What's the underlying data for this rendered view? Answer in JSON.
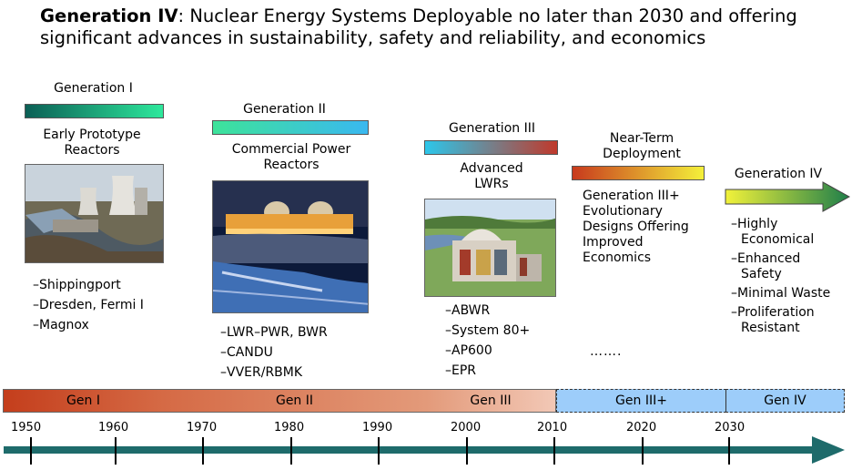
{
  "title": {
    "bold": "Generation IV",
    "rest": ": Nuclear Energy Systems Deployable no later than 2030 and offering significant advances in sustainability, safety and reliability, and economics"
  },
  "generations": {
    "gen1": {
      "label": "Generation I",
      "subtitle": "Early Prototype Reactors",
      "items": [
        "–Shippingport",
        "–Dresden, Fermi I",
        "–Magnox"
      ]
    },
    "gen2": {
      "label": "Generation II",
      "subtitle": "Commercial Power Reactors",
      "items": [
        "–LWR–PWR, BWR",
        "–CANDU",
        "–VVER/RBMK"
      ]
    },
    "gen3": {
      "label": "Generation III",
      "subtitle": "Advanced LWRs",
      "items": [
        "–ABWR",
        "–System 80+",
        "–AP600",
        "–EPR"
      ]
    },
    "gen3plus": {
      "label": "Near-Term Deployment",
      "subtitle": "Generation III+ Evolutionary Designs Offering Improved Economics",
      "ellipsis": "……."
    },
    "gen4": {
      "label": "Generation IV",
      "items": [
        "–Highly Economical",
        "–Enhanced Safety",
        "–Minimal Waste",
        "–Proliferation Resistant"
      ]
    }
  },
  "timeline": {
    "segments": [
      "Gen I",
      "Gen II",
      "Gen III",
      "Gen III+",
      "Gen IV"
    ],
    "years": [
      "1950",
      "1960",
      "1970",
      "1980",
      "1990",
      "2000",
      "2010",
      "2020",
      "2030"
    ]
  },
  "colors": {
    "gen1_bar": [
      "#0b5f55",
      "#2ee89c"
    ],
    "gen2_bar": [
      "#3de39a",
      "#3ab8f0"
    ],
    "gen3_bar": [
      "#2cc6ea",
      "#c0392b"
    ],
    "gen3plus_bar": [
      "#c83a1d",
      "#f4f03a"
    ],
    "gen4_arrow": [
      "#f2f23a",
      "#1f7f4a"
    ],
    "axis": "#1e6b6b"
  }
}
